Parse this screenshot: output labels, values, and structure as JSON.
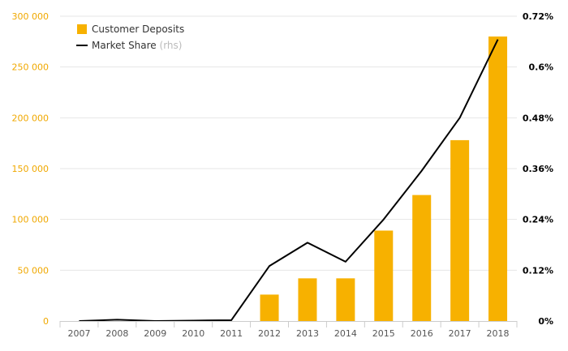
{
  "chart_data": {
    "type": "bar",
    "categories": [
      "2007",
      "2008",
      "2009",
      "2010",
      "2011",
      "2012",
      "2013",
      "2014",
      "2015",
      "2016",
      "2017",
      "2018"
    ],
    "series": [
      {
        "name": "Customer Deposits",
        "type": "bar",
        "axis": "left",
        "color": "#f7b100",
        "values": [
          0,
          0,
          0,
          0,
          0,
          26000,
          42000,
          42000,
          89000,
          124000,
          178000,
          280000
        ]
      },
      {
        "name": "Market Share",
        "name_suffix": "(rhs)",
        "type": "line",
        "axis": "right",
        "color": "#000000",
        "values": [
          0.0,
          0.003,
          0.0,
          0.001,
          0.002,
          0.13,
          0.185,
          0.14,
          0.24,
          0.355,
          0.48,
          0.665
        ]
      }
    ],
    "y_left": {
      "range": [
        0,
        300000
      ],
      "ticks": [
        0,
        50000,
        100000,
        150000,
        200000,
        250000,
        300000
      ],
      "tick_labels": [
        "0",
        "50 000",
        "100 000",
        "150 000",
        "200 000",
        "250 000",
        "300 000"
      ],
      "color": "#f0a800"
    },
    "y_right": {
      "range": [
        0,
        0.72
      ],
      "ticks": [
        0,
        0.12,
        0.24,
        0.36,
        0.48,
        0.6,
        0.72
      ],
      "tick_labels": [
        "0%",
        "0.12%",
        "0.24%",
        "0.36%",
        "0.48%",
        "0.6%",
        "0.72%"
      ],
      "color": "#000000"
    },
    "grid": true,
    "legend_position": "top-left",
    "title": "",
    "xlabel": "",
    "ylabel": ""
  },
  "colors": {
    "grid": "#e6e6e6",
    "axis": "#cccccc",
    "x_tick_text": "#555555",
    "legend_text": "#333333",
    "legend_suffix": "#bbbbbb"
  }
}
